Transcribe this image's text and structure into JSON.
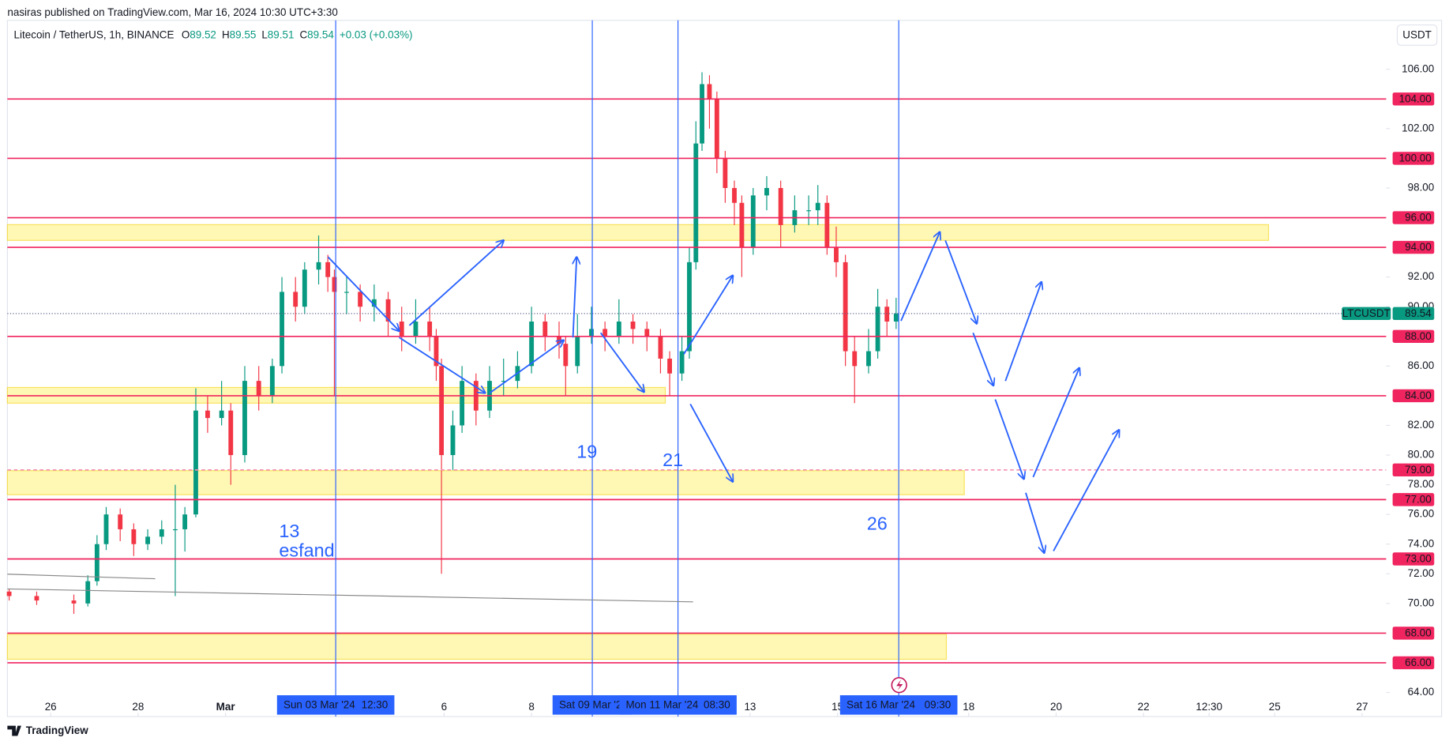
{
  "header": {
    "publisher": "nasiras published on TradingView.com, Mar 16, 2024 10:30 UTC+3:30"
  },
  "chart_data": {
    "type": "candlestick",
    "title": "Litecoin / TetherUS, 1h, BINANCE",
    "legend": {
      "open_label": "O",
      "open": 89.52,
      "high_label": "H",
      "high": 89.55,
      "low_label": "L",
      "low": 89.51,
      "close_label": "C",
      "close": 89.54,
      "change": {
        "value": 0.03,
        "label": "+0.03 (+0.03%)"
      }
    },
    "currency": "USDT",
    "symbol": "LTCUSDT",
    "last_price": 89.54,
    "up_color": "#089981",
    "down_color": "#f23645",
    "level_color": "#f0245e",
    "line_color": "#2962ff",
    "x": [
      -0.95,
      -0.32,
      0.53,
      0.85,
      1.06,
      1.27,
      1.59,
      1.9,
      2.22,
      2.54,
      2.85,
      3.07,
      3.32,
      3.59,
      3.91,
      4.12,
      4.44,
      4.76,
      5.07,
      5.29,
      5.6,
      5.81,
      6.13,
      6.34,
      6.49,
      6.77,
      7.08,
      7.4,
      7.72,
      8.03,
      8.35,
      8.67,
      8.82,
      8.94,
      9.2,
      9.41,
      9.73,
      10.04,
      10.36,
      10.68,
      11.0,
      11.31,
      11.63,
      11.78,
      12.05,
      12.37,
      12.68,
      13.0,
      13.32,
      13.64,
      13.95,
      14.16,
      14.44,
      14.61,
      14.76,
      14.9,
      15.07,
      15.24,
      15.43,
      15.64,
      15.81,
      16.07,
      16.38,
      16.7,
      17.02,
      17.34,
      17.55,
      17.76,
      17.97,
      18.18,
      18.39,
      18.71,
      18.92,
      19.13,
      19.34
    ],
    "open": [
      70.8,
      70.5,
      70.2,
      70.0,
      71.5,
      74.0,
      76.0,
      75.0,
      74.0,
      74.5,
      75.0,
      75.0,
      76.0,
      83.0,
      82.5,
      83.0,
      80.0,
      85.0,
      84.0,
      86.0,
      91.0,
      90.0,
      92.5,
      93.0,
      92.0,
      91.0,
      91.0,
      90.0,
      90.5,
      89.0,
      88.0,
      89.0,
      88.0,
      86.0,
      80.0,
      82.0,
      85.0,
      83.0,
      85.0,
      85.0,
      86.0,
      89.0,
      88.0,
      87.5,
      86.0,
      88.0,
      88.5,
      88.0,
      89.0,
      88.5,
      88.0,
      86.5,
      85.5,
      87.0,
      93.0,
      101.0,
      105.0,
      104.0,
      100.0,
      98.0,
      97.0,
      94.0,
      97.5,
      98.0,
      95.5,
      96.5,
      96.5,
      97.0,
      94.0,
      93.0,
      87.0,
      86.0,
      87.0,
      90.0,
      89.0
    ],
    "high": [
      71.0,
      70.8,
      70.6,
      71.9,
      74.6,
      76.5,
      76.4,
      75.4,
      75.0,
      75.6,
      78.0,
      76.5,
      84.5,
      84.0,
      85.0,
      83.5,
      86.0,
      86.0,
      86.5,
      92.0,
      92.0,
      93.0,
      94.8,
      93.5,
      92.5,
      92.0,
      91.5,
      91.5,
      91.0,
      90.0,
      90.5,
      90.0,
      88.5,
      86.5,
      83.0,
      86.0,
      85.5,
      86.0,
      86.5,
      87.0,
      90.0,
      89.5,
      89.0,
      88.0,
      89.5,
      90.0,
      89.0,
      90.5,
      89.5,
      89.0,
      88.5,
      87.0,
      88.0,
      94.0,
      102.5,
      105.8,
      105.6,
      104.5,
      100.5,
      98.5,
      97.5,
      98.0,
      98.8,
      98.5,
      97.5,
      97.5,
      98.2,
      97.5,
      95.4,
      93.5,
      88.0,
      88.5,
      91.2,
      90.5,
      90.6
    ],
    "low": [
      70.2,
      69.9,
      69.3,
      69.8,
      71.2,
      73.6,
      74.2,
      73.2,
      73.6,
      74.0,
      70.5,
      73.5,
      75.8,
      81.5,
      82.0,
      78.0,
      79.5,
      83.0,
      83.5,
      85.5,
      89.0,
      89.5,
      91.5,
      91.0,
      84.0,
      89.5,
      89.0,
      89.0,
      88.0,
      87.0,
      87.5,
      87.0,
      85.0,
      72.0,
      79.0,
      81.5,
      82.0,
      82.5,
      84.0,
      84.5,
      85.5,
      87.0,
      86.5,
      84.0,
      85.5,
      87.5,
      87.0,
      87.5,
      87.5,
      87.0,
      85.5,
      84.0,
      85.0,
      86.5,
      92.5,
      100.5,
      102.0,
      99.0,
      97.0,
      95.5,
      92.0,
      93.5,
      96.5,
      94.0,
      95.0,
      95.5,
      95.5,
      93.5,
      92.0,
      86.0,
      83.5,
      85.5,
      86.5,
      88.0,
      88.5
    ],
    "close": [
      70.5,
      70.2,
      70.0,
      71.5,
      74.0,
      76.0,
      75.0,
      74.0,
      74.5,
      75.0,
      75.0,
      76.0,
      83.0,
      82.5,
      83.0,
      80.0,
      85.0,
      84.0,
      86.0,
      91.0,
      90.0,
      92.5,
      93.0,
      92.0,
      91.0,
      91.0,
      90.0,
      90.5,
      89.0,
      88.0,
      89.0,
      88.0,
      86.0,
      80.0,
      82.0,
      85.0,
      83.0,
      85.0,
      85.0,
      86.0,
      89.0,
      88.0,
      87.5,
      86.0,
      88.0,
      88.5,
      88.0,
      89.0,
      88.5,
      88.0,
      86.5,
      85.5,
      87.0,
      93.0,
      101.0,
      105.0,
      104.0,
      100.0,
      98.0,
      97.0,
      94.0,
      97.5,
      98.0,
      95.5,
      96.5,
      96.5,
      97.0,
      94.0,
      93.0,
      87.0,
      86.0,
      87.0,
      90.0,
      89.0,
      89.54
    ],
    "xlim": [
      -0.99,
      30.55
    ],
    "xticks": [
      {
        "value": 0,
        "label": "26"
      },
      {
        "value": 2,
        "label": "28"
      },
      {
        "value": 4,
        "label": "Mar"
      },
      {
        "value": 9,
        "label": "6"
      },
      {
        "value": 11,
        "label": "8"
      },
      {
        "value": 16,
        "label": "13"
      },
      {
        "value": 18,
        "label": "15"
      },
      {
        "value": 21,
        "label": "18"
      },
      {
        "value": 23,
        "label": "20"
      },
      {
        "value": 25,
        "label": "22"
      },
      {
        "value": 26.5,
        "label": "12:30"
      },
      {
        "value": 28,
        "label": "25"
      },
      {
        "value": 30,
        "label": "27"
      }
    ],
    "ylim": [
      62.38,
      109.3
    ],
    "yticks": [
      {
        "value": 64,
        "label": "64.00"
      },
      {
        "value": 70,
        "label": "70.00"
      },
      {
        "value": 72,
        "label": "72.00"
      },
      {
        "value": 74,
        "label": "74.00"
      },
      {
        "value": 76,
        "label": "76.00"
      },
      {
        "value": 78,
        "label": "78.00"
      },
      {
        "value": 80,
        "label": "80.00"
      },
      {
        "value": 82,
        "label": "82.00"
      },
      {
        "value": 86,
        "label": "86.00"
      },
      {
        "value": 90,
        "label": "90.00"
      },
      {
        "value": 92,
        "label": "92.00"
      },
      {
        "value": 98,
        "label": "98.00"
      },
      {
        "value": 102,
        "label": "102.00"
      },
      {
        "value": 106,
        "label": "106.00"
      }
    ],
    "levels": [
      {
        "value": 104,
        "label": "104.00"
      },
      {
        "value": 100,
        "label": "100.00"
      },
      {
        "value": 96,
        "label": "96.00"
      },
      {
        "value": 94,
        "label": "94.00"
      },
      {
        "value": 88,
        "label": "88.00"
      },
      {
        "value": 84,
        "label": "84.00"
      },
      {
        "value": 79,
        "label": "79.00",
        "dashed": true
      },
      {
        "value": 77,
        "label": "77.00"
      },
      {
        "value": 73,
        "label": "73.00"
      },
      {
        "value": 68,
        "label": "68.00"
      },
      {
        "value": 66,
        "label": "66.00"
      }
    ],
    "zones": [
      {
        "from": 94.47,
        "to": 95.53,
        "x_end": 27.86
      },
      {
        "from": 83.5,
        "to": 84.56,
        "x_end": 14.06
      },
      {
        "from": 77.33,
        "to": 78.95,
        "x_end": 20.9
      },
      {
        "from": 66.24,
        "to": 67.93,
        "x_end": 20.49
      }
    ],
    "vlines": [
      {
        "x": 6.52,
        "date": "Sun 03 Mar '24",
        "time": "12:30"
      },
      {
        "x": 12.39,
        "date": "Sat 09 Mar '24"
      },
      {
        "x": 14.35,
        "date": "Mon 11 Mar '24",
        "time": "08:30"
      },
      {
        "x": 19.4,
        "date": "Sat 16 Mar '24",
        "time": "09:30"
      }
    ],
    "annotations": [
      "19",
      "21",
      "13",
      "esfand",
      "26"
    ]
  },
  "footer": {
    "brand": "TradingView"
  }
}
